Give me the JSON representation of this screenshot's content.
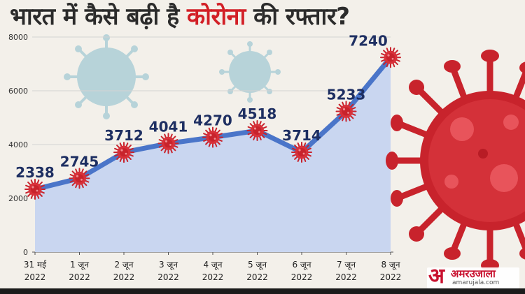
{
  "title": {
    "part1": "भारत में कैसे बढ़ी है ",
    "part2": "कोरोना",
    "part3": " की रफ्तार?"
  },
  "colors": {
    "line": "#4a75c9",
    "area": "#c9d6f0",
    "virus_red": "#c8232c",
    "title_accent": "#d21f26",
    "value_label": "#1e2f62"
  },
  "chart_data": {
    "type": "area",
    "categories": [
      [
        "31 मई",
        "2022"
      ],
      [
        "1 जून",
        "2022"
      ],
      [
        "2 जून",
        "2022"
      ],
      [
        "3 जून",
        "2022"
      ],
      [
        "4 जून",
        "2022"
      ],
      [
        "5 जून",
        "2022"
      ],
      [
        "6 जून",
        "2022"
      ],
      [
        "7 जून",
        "2022"
      ],
      [
        "8 जून",
        "2022"
      ]
    ],
    "values": [
      2338,
      2745,
      3712,
      4041,
      4270,
      4518,
      3714,
      5233,
      7240
    ],
    "ylim": [
      0,
      8000
    ],
    "yticks": [
      "0",
      "2000",
      "4000",
      "6000",
      "8000"
    ],
    "grid": true,
    "marker": "virus-icon"
  },
  "logo": {
    "glyph": "अ",
    "name": "अमरउजाला",
    "url": "amarujala.com"
  }
}
